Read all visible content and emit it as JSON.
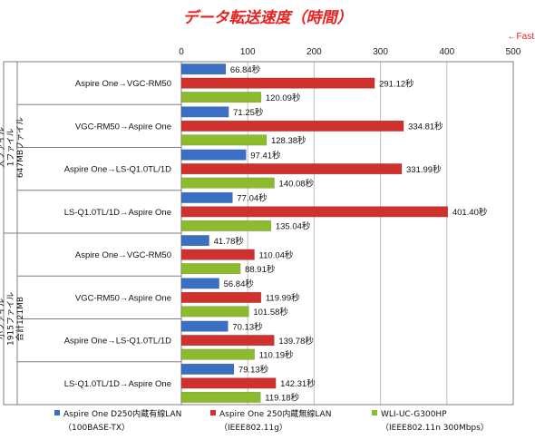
{
  "chart_data": {
    "type": "bar",
    "orientation": "horizontal",
    "title": "データ転送速度（時間）",
    "direction_note": "←Fast",
    "xlim": [
      0,
      500
    ],
    "xticks": [
      0,
      100,
      200,
      300,
      400,
      500
    ],
    "grid": true,
    "value_suffix": "秒",
    "groups": [
      {
        "label_lines": [
          "大ファイル",
          "1ファイル",
          "647MBファイル"
        ],
        "categories": [
          0,
          1,
          2,
          3
        ]
      },
      {
        "label_lines": [
          "小ファイル",
          "1915ファイル",
          "合計121MB"
        ],
        "categories": [
          4,
          5,
          6,
          7
        ]
      }
    ],
    "categories": [
      "Aspire One→VGC-RM50",
      "VGC-RM50→Aspire One",
      "Aspire One→LS-Q1.0TL/1D",
      "LS-Q1.0TL/1D→Aspire One",
      "Aspire One→VGC-RM50",
      "VGC-RM50→Aspire One",
      "Aspire One→LS-Q1.0TL/1D",
      "LS-Q1.0TL/1D→Aspire One"
    ],
    "series": [
      {
        "name": "Aspire One D250内蔵有線LAN",
        "name_line2": "（100BASE-TX）",
        "color": "#3b6fc4",
        "values": [
          66.84,
          71.25,
          97.41,
          77.04,
          41.78,
          56.84,
          70.13,
          79.13
        ],
        "labels": [
          "66.84秒",
          "71.25秒",
          "97.41秒",
          "77.04秒",
          "41.78秒",
          "56.84秒",
          "70.13秒",
          "79.13秒"
        ]
      },
      {
        "name": "Aspire One 250内蔵無線LAN",
        "name_line2": "（IEEE802.11g）",
        "color": "#d0312d",
        "values": [
          291.12,
          334.81,
          331.99,
          401.4,
          110.04,
          119.99,
          139.78,
          142.31
        ],
        "labels": [
          "291.12秒",
          "334.81秒",
          "331.99秒",
          "401.40秒",
          "110.04秒",
          "119.99秒",
          "139.78秒",
          "142.31秒"
        ]
      },
      {
        "name": "WLI-UC-G300HP",
        "name_line2": "（IEEE802.11n 300Mbps）",
        "color": "#8dbb2e",
        "values": [
          120.09,
          128.38,
          140.08,
          135.04,
          88.91,
          101.58,
          110.19,
          119.18
        ],
        "labels": [
          "120.09秒",
          "128.38秒",
          "140.08秒",
          "135.04秒",
          "88.91秒",
          "101.58秒",
          "110.19秒",
          "119.18秒"
        ]
      }
    ],
    "legend_position": "bottom",
    "colors": {
      "title": "#e8201f",
      "fast": "#e8201f",
      "grid": "#bfbfbf",
      "border": "#7f7f7f"
    }
  }
}
